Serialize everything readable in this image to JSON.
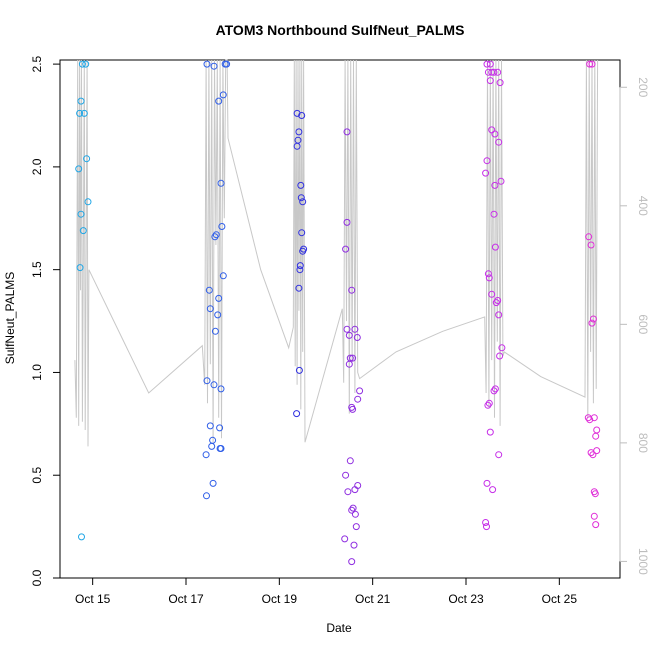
{
  "chart_data": {
    "type": "scatter",
    "title": "ATOM3 Northbound SulfNeut_PALMS",
    "xlabel": "Date",
    "ylabel": "SulfNeut_PALMS",
    "xlim": [
      14.3,
      26.3
    ],
    "ylim": [
      0.0,
      2.52
    ],
    "y2lim": [
      1028,
      154
    ],
    "x_ticks": [
      {
        "value": 15,
        "label": "Oct 15"
      },
      {
        "value": 17,
        "label": "Oct 17"
      },
      {
        "value": 19,
        "label": "Oct 19"
      },
      {
        "value": 21,
        "label": "Oct 21"
      },
      {
        "value": 23,
        "label": "Oct 23"
      },
      {
        "value": 25,
        "label": "Oct 25"
      }
    ],
    "y_ticks": [
      0.0,
      0.5,
      1.0,
      1.5,
      2.0,
      2.5
    ],
    "y_tick_labels": [
      "0.0",
      "0.5",
      "1.0",
      "1.5",
      "2.0",
      "2.5"
    ],
    "y2_ticks": [
      200,
      400,
      600,
      800,
      1000
    ],
    "y2_tick_labels": [
      "200",
      "400",
      "600",
      "800",
      "1000"
    ],
    "grid": false,
    "colors": {
      "flight_track": "#c8c8c8",
      "axis": "#000000",
      "right_axis": "#bdbdbd"
    },
    "series": [
      {
        "color": "#1fa6e6",
        "points": [
          [
            14.72,
            2.26
          ],
          [
            14.75,
            2.32
          ],
          [
            14.78,
            2.5
          ],
          [
            14.82,
            2.26
          ],
          [
            14.85,
            2.5
          ],
          [
            14.7,
            1.99
          ],
          [
            14.87,
            2.04
          ],
          [
            14.75,
            1.77
          ],
          [
            14.9,
            1.83
          ],
          [
            14.8,
            1.69
          ],
          [
            14.73,
            1.51
          ],
          [
            14.76,
            0.2
          ]
        ]
      },
      {
        "color": "#2f5ee8",
        "points": [
          [
            17.45,
            2.5
          ],
          [
            17.6,
            2.49
          ],
          [
            17.84,
            2.5
          ],
          [
            17.87,
            2.5
          ],
          [
            17.7,
            2.32
          ],
          [
            17.8,
            2.35
          ],
          [
            17.75,
            1.92
          ],
          [
            17.77,
            1.71
          ],
          [
            17.65,
            1.67
          ],
          [
            17.62,
            1.66
          ],
          [
            17.8,
            1.47
          ],
          [
            17.5,
            1.4
          ],
          [
            17.7,
            1.36
          ],
          [
            17.52,
            1.31
          ],
          [
            17.68,
            1.28
          ],
          [
            17.63,
            1.2
          ],
          [
            17.45,
            0.96
          ],
          [
            17.6,
            0.94
          ],
          [
            17.75,
            0.92
          ],
          [
            17.52,
            0.74
          ],
          [
            17.72,
            0.73
          ],
          [
            17.57,
            0.67
          ],
          [
            17.55,
            0.64
          ],
          [
            17.73,
            0.63
          ],
          [
            17.75,
            0.63
          ],
          [
            17.43,
            0.6
          ],
          [
            17.58,
            0.46
          ],
          [
            17.44,
            0.4
          ]
        ]
      },
      {
        "color": "#3030e0",
        "points": [
          [
            19.38,
            2.26
          ],
          [
            19.48,
            2.25
          ],
          [
            19.42,
            2.17
          ],
          [
            19.4,
            2.13
          ],
          [
            19.38,
            2.1
          ],
          [
            19.46,
            1.91
          ],
          [
            19.47,
            1.85
          ],
          [
            19.5,
            1.83
          ],
          [
            19.48,
            1.68
          ],
          [
            19.52,
            1.6
          ],
          [
            19.5,
            1.59
          ],
          [
            19.45,
            1.52
          ],
          [
            19.44,
            1.5
          ],
          [
            19.42,
            1.41
          ],
          [
            19.43,
            1.01
          ],
          [
            19.37,
            0.8
          ]
        ]
      },
      {
        "color": "#8f2ee0",
        "points": [
          [
            20.45,
            2.17
          ],
          [
            20.45,
            1.73
          ],
          [
            20.42,
            1.6
          ],
          [
            20.55,
            1.4
          ],
          [
            20.45,
            1.21
          ],
          [
            20.62,
            1.21
          ],
          [
            20.5,
            1.18
          ],
          [
            20.67,
            1.17
          ],
          [
            20.57,
            1.07
          ],
          [
            20.52,
            1.07
          ],
          [
            20.5,
            1.04
          ],
          [
            20.72,
            0.91
          ],
          [
            20.68,
            0.87
          ],
          [
            20.55,
            0.83
          ],
          [
            20.57,
            0.82
          ],
          [
            20.52,
            0.57
          ],
          [
            20.42,
            0.5
          ],
          [
            20.68,
            0.45
          ],
          [
            20.62,
            0.43
          ],
          [
            20.47,
            0.42
          ],
          [
            20.58,
            0.34
          ],
          [
            20.55,
            0.33
          ],
          [
            20.63,
            0.31
          ],
          [
            20.65,
            0.25
          ],
          [
            20.4,
            0.19
          ],
          [
            20.6,
            0.16
          ],
          [
            20.55,
            0.08
          ]
        ]
      },
      {
        "color": "#c62ee8",
        "points": [
          [
            23.45,
            2.5
          ],
          [
            23.52,
            2.5
          ],
          [
            23.55,
            2.46
          ],
          [
            23.6,
            2.46
          ],
          [
            23.68,
            2.46
          ],
          [
            23.48,
            2.46
          ],
          [
            23.52,
            2.42
          ],
          [
            23.73,
            2.41
          ],
          [
            23.55,
            2.18
          ],
          [
            23.62,
            2.16
          ],
          [
            23.7,
            2.12
          ],
          [
            23.45,
            2.03
          ],
          [
            23.42,
            1.97
          ],
          [
            23.75,
            1.93
          ],
          [
            23.62,
            1.91
          ],
          [
            23.6,
            1.77
          ],
          [
            23.63,
            1.61
          ],
          [
            23.48,
            1.48
          ],
          [
            23.5,
            1.46
          ],
          [
            23.55,
            1.38
          ],
          [
            23.68,
            1.35
          ],
          [
            23.65,
            1.34
          ],
          [
            23.7,
            1.28
          ],
          [
            23.77,
            1.12
          ],
          [
            23.72,
            1.08
          ],
          [
            23.63,
            0.92
          ],
          [
            23.6,
            0.91
          ],
          [
            23.5,
            0.85
          ],
          [
            23.47,
            0.84
          ],
          [
            23.52,
            0.71
          ],
          [
            23.7,
            0.6
          ],
          [
            23.45,
            0.46
          ],
          [
            23.57,
            0.43
          ],
          [
            23.42,
            0.27
          ],
          [
            23.44,
            0.25
          ]
        ]
      },
      {
        "color": "#e02ed8",
        "points": [
          [
            25.65,
            2.5
          ],
          [
            25.7,
            2.5
          ],
          [
            25.63,
            1.66
          ],
          [
            25.68,
            1.62
          ],
          [
            25.73,
            1.26
          ],
          [
            25.7,
            1.24
          ],
          [
            25.62,
            0.78
          ],
          [
            25.65,
            0.77
          ],
          [
            25.75,
            0.78
          ],
          [
            25.8,
            0.72
          ],
          [
            25.78,
            0.69
          ],
          [
            25.8,
            0.62
          ],
          [
            25.68,
            0.61
          ],
          [
            25.72,
            0.6
          ],
          [
            25.75,
            0.42
          ],
          [
            25.77,
            0.41
          ],
          [
            25.75,
            0.3
          ],
          [
            25.78,
            0.26
          ]
        ]
      }
    ],
    "flight_track": {
      "x": [
        14.62,
        14.65,
        14.68,
        14.7,
        14.72,
        14.74,
        14.76,
        14.78,
        14.8,
        14.82,
        14.84,
        14.86,
        14.88,
        14.9,
        14.92,
        16.2,
        17.35,
        17.4,
        17.43,
        17.46,
        17.49,
        17.52,
        17.55,
        17.58,
        17.61,
        17.64,
        17.67,
        17.7,
        17.73,
        17.76,
        17.79,
        17.82,
        17.85,
        17.88,
        17.9,
        18.6,
        19.2,
        19.3,
        19.32,
        19.34,
        19.36,
        19.38,
        19.4,
        19.42,
        19.44,
        19.46,
        19.48,
        19.5,
        19.52,
        19.55,
        20.35,
        20.38,
        20.41,
        20.44,
        20.47,
        20.5,
        20.53,
        20.56,
        20.59,
        20.62,
        20.65,
        20.68,
        20.72,
        21.5,
        22.5,
        23.4,
        23.43,
        23.46,
        23.49,
        23.52,
        23.55,
        23.58,
        23.61,
        23.64,
        23.67,
        23.7,
        23.73,
        23.76,
        23.79,
        23.82,
        24.6,
        25.55,
        25.58,
        25.61,
        25.64,
        25.67,
        25.7,
        25.73,
        25.76,
        25.79,
        25.82
      ],
      "y": [
        1.06,
        0.78,
        2.52,
        0.74,
        2.52,
        1.4,
        2.52,
        0.76,
        1.55,
        2.52,
        0.72,
        1.52,
        2.52,
        0.64,
        1.5,
        0.9,
        1.13,
        0.94,
        2.52,
        0.85,
        2.52,
        1.04,
        2.52,
        0.66,
        2.52,
        1.62,
        2.52,
        0.78,
        2.52,
        0.68,
        2.52,
        1.75,
        2.52,
        2.52,
        2.14,
        1.5,
        1.12,
        1.22,
        2.52,
        1.03,
        2.52,
        0.94,
        2.52,
        1.3,
        2.52,
        0.82,
        2.52,
        1.1,
        2.52,
        0.66,
        1.31,
        0.95,
        2.52,
        1.25,
        2.52,
        0.8,
        2.52,
        1.05,
        2.52,
        0.9,
        2.52,
        1.0,
        0.97,
        1.1,
        1.2,
        1.27,
        0.9,
        2.52,
        0.83,
        2.52,
        1.06,
        2.52,
        0.78,
        2.52,
        1.15,
        2.52,
        0.74,
        2.52,
        1.08,
        1.1,
        0.98,
        0.88,
        2.52,
        0.78,
        2.52,
        1.1,
        2.52,
        0.85,
        2.52,
        0.92,
        2.52
      ]
    }
  }
}
